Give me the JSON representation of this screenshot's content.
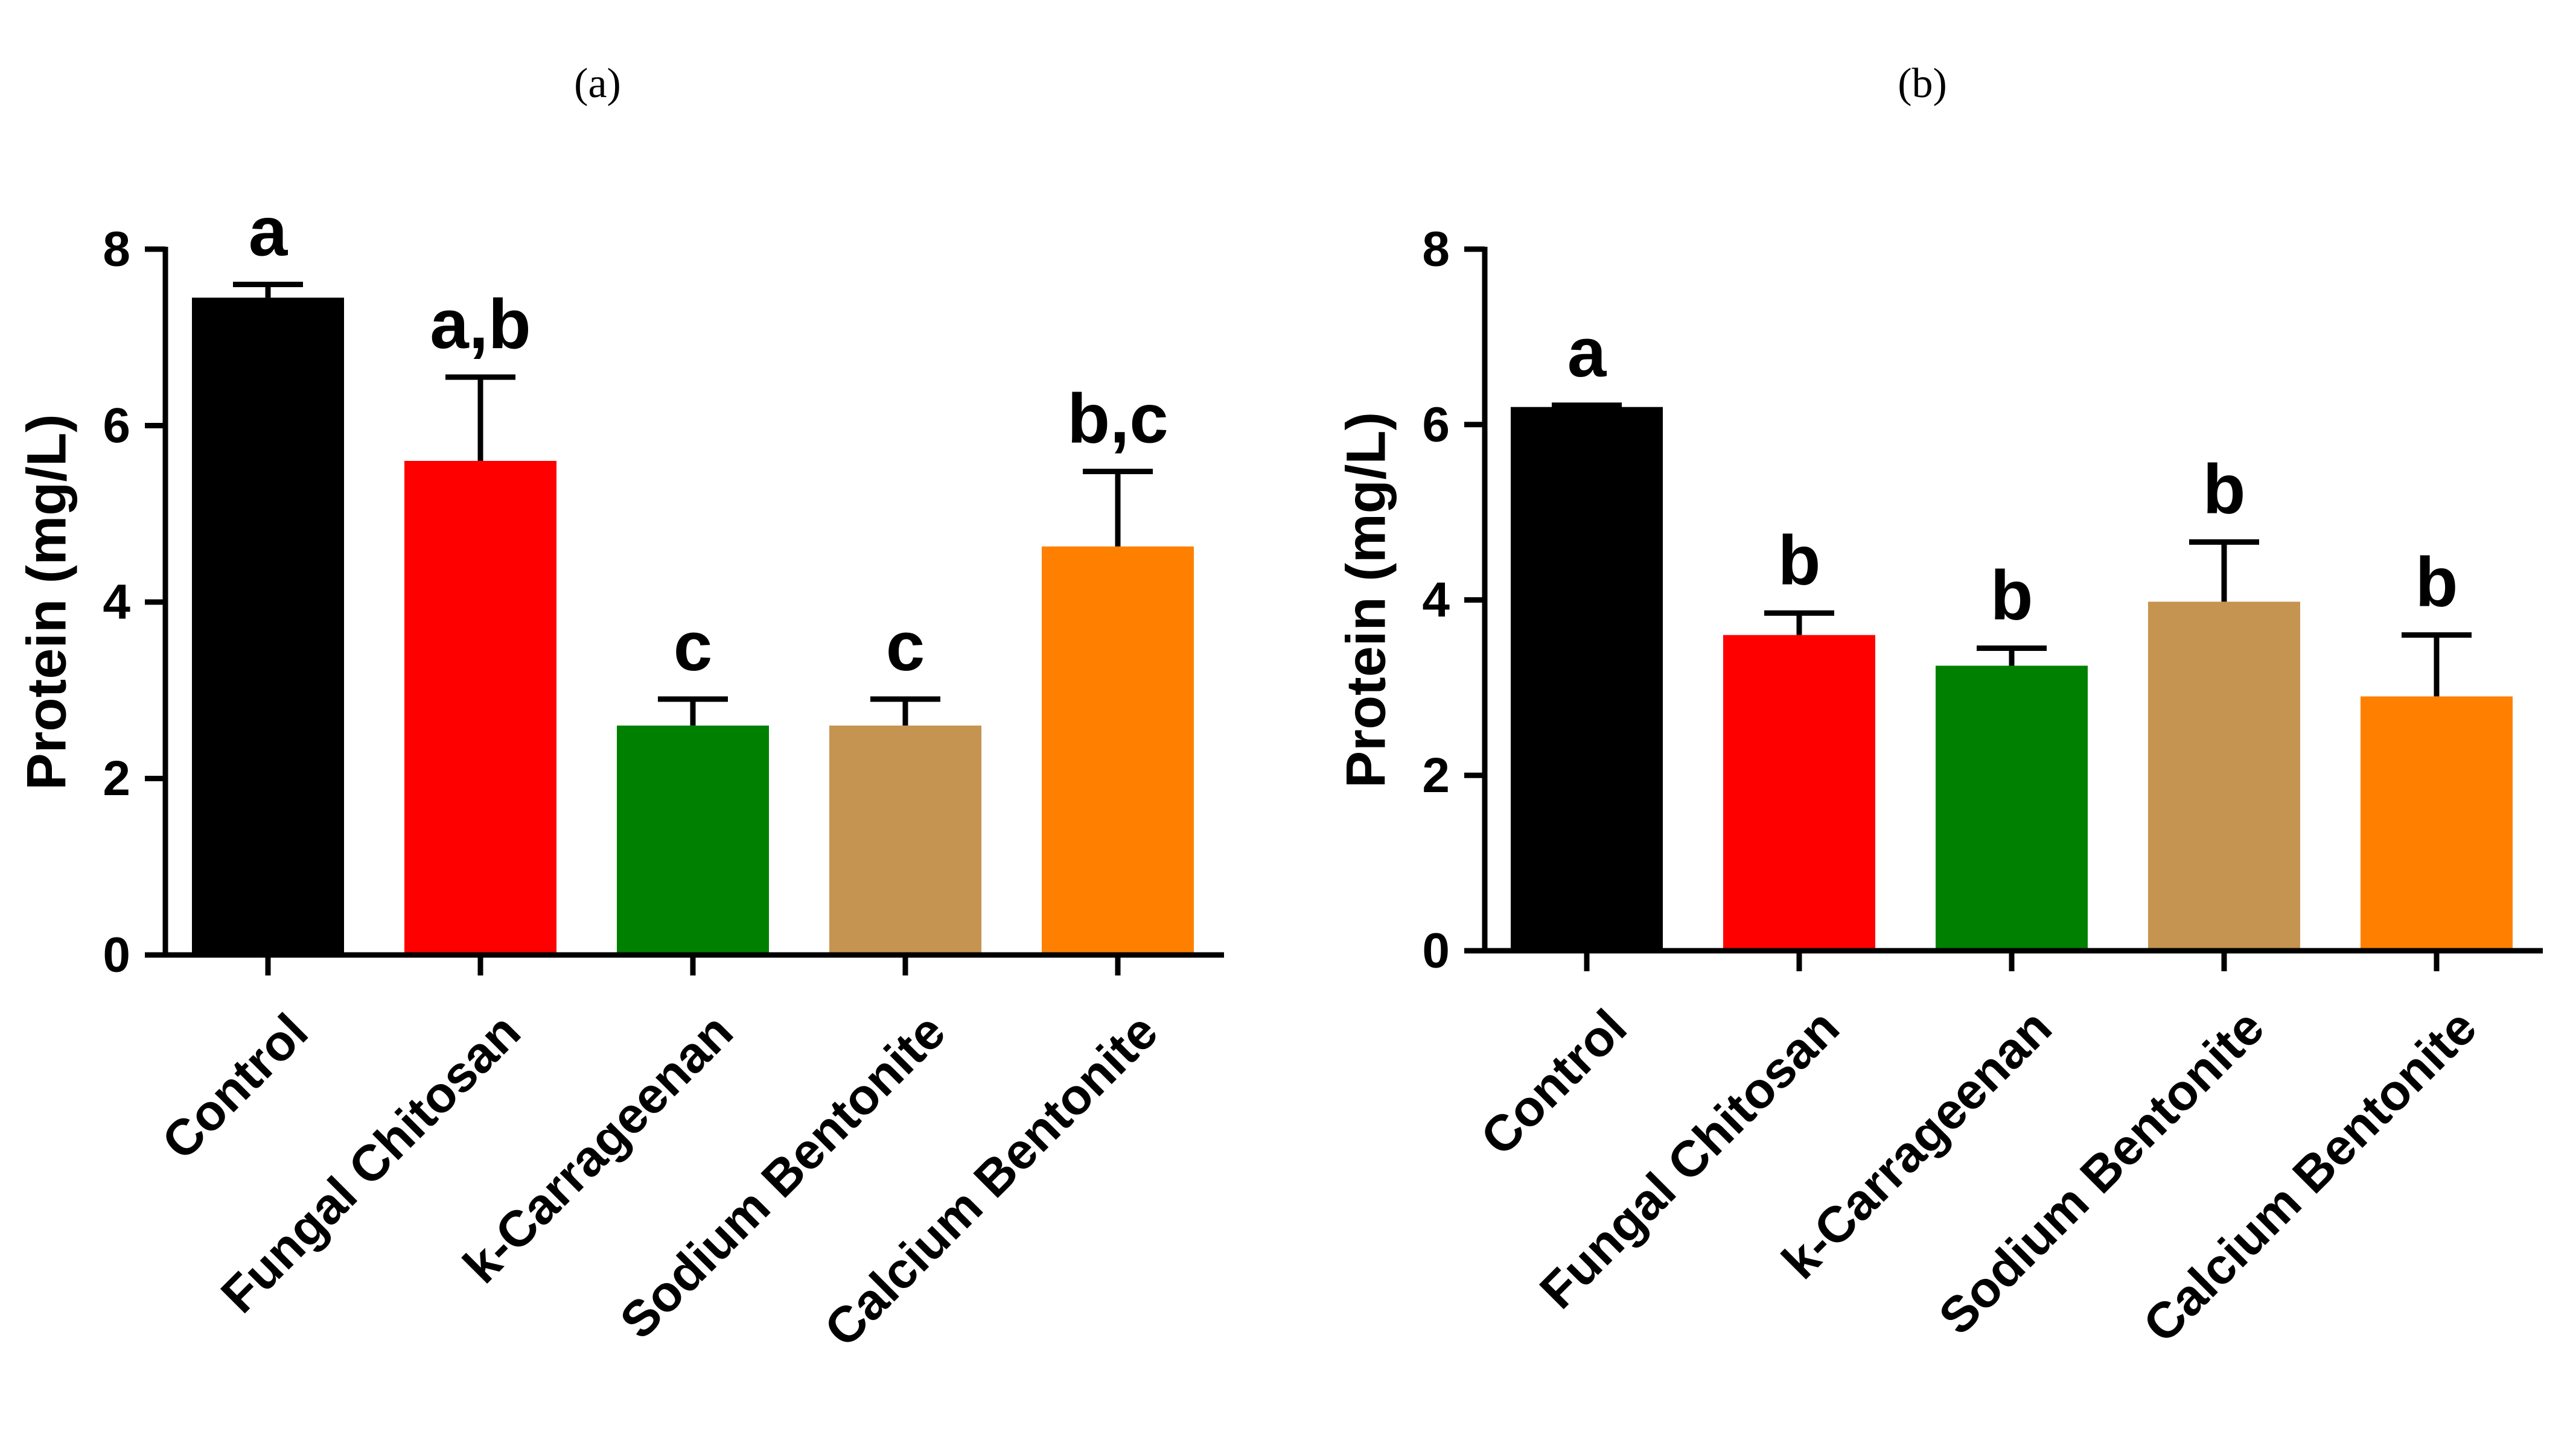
{
  "chart_data": [
    {
      "type": "bar",
      "panel_label": "(a)",
      "title": "",
      "xlabel": "",
      "ylabel": "Protein (mg/L)",
      "ylim": [
        0,
        8
      ],
      "yticks": [
        0,
        2,
        4,
        6,
        8
      ],
      "categories": [
        "Control",
        "Fungal Chitosan",
        "k-Carrageenan",
        "Sodium Bentonite",
        "Calcium Bentonite"
      ],
      "values": [
        7.45,
        5.6,
        2.6,
        2.6,
        4.63
      ],
      "errors": [
        0.15,
        0.95,
        0.3,
        0.3,
        0.85
      ],
      "significance": [
        "a",
        "a,b",
        "c",
        "c",
        "b,c"
      ],
      "colors": [
        "#000000",
        "#ff0000",
        "#008000",
        "#c49450",
        "#ff8000"
      ]
    },
    {
      "type": "bar",
      "panel_label": "(b)",
      "title": "",
      "xlabel": "",
      "ylabel": "Protein (mg/L)",
      "ylim": [
        0,
        8
      ],
      "yticks": [
        0,
        2,
        4,
        6,
        8
      ],
      "categories": [
        "Control",
        "Fungal Chitosan",
        "k-Carrageenan",
        "Sodium Bentonite",
        "Calcium Bentonite"
      ],
      "values": [
        6.2,
        3.6,
        3.25,
        3.98,
        2.9
      ],
      "errors": [
        0.02,
        0.25,
        0.2,
        0.68,
        0.7
      ],
      "significance": [
        "a",
        "b",
        "b",
        "b",
        "b"
      ],
      "colors": [
        "#000000",
        "#ff0000",
        "#008000",
        "#c49450",
        "#ff8000"
      ]
    }
  ]
}
